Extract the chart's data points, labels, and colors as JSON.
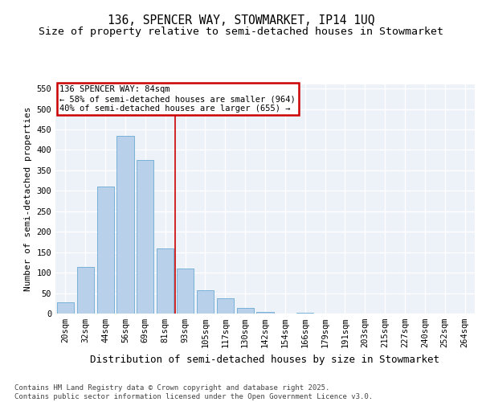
{
  "title1": "136, SPENCER WAY, STOWMARKET, IP14 1UQ",
  "title2": "Size of property relative to semi-detached houses in Stowmarket",
  "xlabel": "Distribution of semi-detached houses by size in Stowmarket",
  "ylabel": "Number of semi-detached properties",
  "categories": [
    "20sqm",
    "32sqm",
    "44sqm",
    "56sqm",
    "69sqm",
    "81sqm",
    "93sqm",
    "105sqm",
    "117sqm",
    "130sqm",
    "142sqm",
    "154sqm",
    "166sqm",
    "179sqm",
    "191sqm",
    "203sqm",
    "215sqm",
    "227sqm",
    "240sqm",
    "252sqm",
    "264sqm"
  ],
  "values": [
    28,
    113,
    310,
    435,
    375,
    160,
    110,
    57,
    37,
    13,
    4,
    0,
    1,
    0,
    0,
    0,
    0,
    0,
    0,
    0,
    0
  ],
  "bar_color": "#b8d0ea",
  "bar_edge_color": "#6aaad4",
  "vline_color": "#cc0000",
  "annotation_text": "136 SPENCER WAY: 84sqm\n← 58% of semi-detached houses are smaller (964)\n40% of semi-detached houses are larger (655) →",
  "annotation_box_color": "#cc0000",
  "ylim": [
    0,
    560
  ],
  "yticks": [
    0,
    50,
    100,
    150,
    200,
    250,
    300,
    350,
    400,
    450,
    500,
    550
  ],
  "background_color": "#edf1f8",
  "grid_color": "#ffffff",
  "footnote": "Contains HM Land Registry data © Crown copyright and database right 2025.\nContains public sector information licensed under the Open Government Licence v3.0.",
  "title_fontsize": 10.5,
  "subtitle_fontsize": 9.5,
  "xlabel_fontsize": 9,
  "ylabel_fontsize": 8,
  "tick_fontsize": 7.5,
  "annotation_fontsize": 7.5,
  "footnote_fontsize": 6.5
}
